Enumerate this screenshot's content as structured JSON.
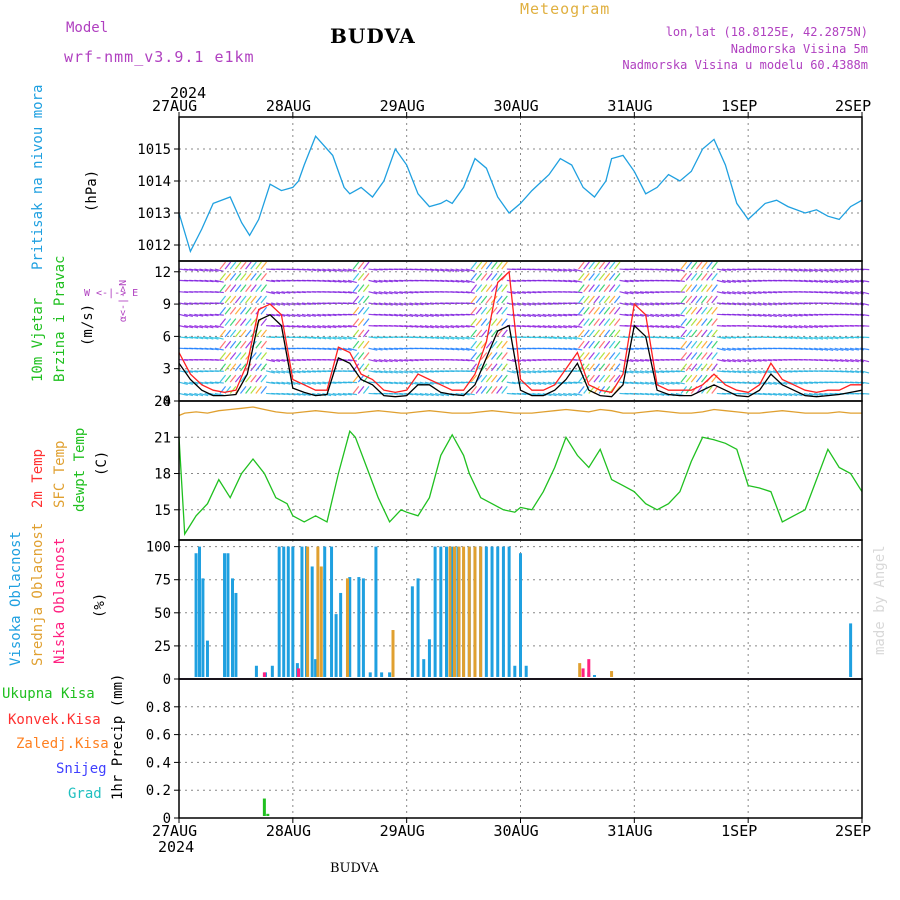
{
  "header": {
    "model_label": "Model",
    "model_name": "wrf-nmm_v3.9.1  e1km",
    "station": "BUDVA",
    "meteogram": "Meteogram",
    "lonlat": "lon,lat (18.8125E, 42.2875N)",
    "elevation": "Nadmorska Visina 5m",
    "model_elevation": "Nadmorska Visina u modelu 60.4388m",
    "footer_station": "BUDVA",
    "watermark": "made by Angel"
  },
  "axis": {
    "top_year": "2024",
    "bottom_year": "2024",
    "days": [
      "27AUG",
      "28AUG",
      "29AUG",
      "30AUG",
      "31AUG",
      "1SEP",
      "2SEP"
    ]
  },
  "panel_labels": {
    "pressure": {
      "title": "Pritisak na nivou mora",
      "unit": "(hPa)"
    },
    "wind": {
      "title1": "10m Vjetar",
      "title2": "Brzina i Pravac",
      "unit": "(m/s)",
      "compass_ns": "α<-|->N",
      "compass_we": "W <-|-> E"
    },
    "temp": {
      "t2m": "2m Temp",
      "sfc": "SFC Temp",
      "dew": "dewpt Temp",
      "unit": "(C)"
    },
    "cloud": {
      "high": "Visoka Oblacnost",
      "mid": "Srednja Oblacnost",
      "low": "Niska Oblacnost",
      "unit": "(%)"
    },
    "precip": {
      "total": "Ukupna Kisa",
      "conv": "Konvek.Kisa",
      "frozen": "Zaledj.Kisa",
      "snow": "Snijeg",
      "graupel": "Grad",
      "unit": "1hr Precip (mm)"
    }
  },
  "colors": {
    "pressure": "#1fa0e0",
    "wind_speed": "#000000",
    "wind_gust": "#ff2020",
    "temp_2m": "#20c020",
    "temp_sfc": "#e0a030",
    "cloud_high": "#1fa0e0",
    "cloud_mid": "#e0a030",
    "cloud_low": "#ff2080",
    "rain_total": "#20c020",
    "rain_conv": "#ff3030",
    "rain_frozen": "#ff8020",
    "snow": "#4040ff",
    "graupel": "#20c0c0",
    "header_purple": "#b040c0",
    "header_orange": "#e0b040"
  },
  "chart_data": [
    {
      "type": "line",
      "panel": "pressure",
      "x_days": [
        0,
        0.1,
        0.2,
        0.3,
        0.45,
        0.55,
        0.62,
        0.7,
        0.8,
        0.9,
        1.0,
        1.05,
        1.1,
        1.2,
        1.35,
        1.45,
        1.5,
        1.6,
        1.7,
        1.8,
        1.9,
        2.0,
        2.1,
        2.2,
        2.3,
        2.35,
        2.4,
        2.5,
        2.6,
        2.7,
        2.8,
        2.9,
        3.0,
        3.1,
        3.25,
        3.35,
        3.45,
        3.55,
        3.65,
        3.75,
        3.8,
        3.9,
        4.0,
        4.1,
        4.2,
        4.3,
        4.4,
        4.5,
        4.6,
        4.7,
        4.8,
        4.9,
        5.0,
        5.15,
        5.25,
        5.35,
        5.5,
        5.6,
        5.7,
        5.8,
        5.85,
        5.9,
        5.95,
        6.0
      ],
      "y": [
        1013.0,
        1011.8,
        1012.5,
        1013.3,
        1013.5,
        1012.7,
        1012.3,
        1012.8,
        1013.9,
        1013.7,
        1013.8,
        1014.0,
        1014.5,
        1015.4,
        1014.8,
        1013.8,
        1013.6,
        1013.8,
        1013.5,
        1014.0,
        1015.0,
        1014.5,
        1013.6,
        1013.2,
        1013.3,
        1013.4,
        1013.3,
        1013.8,
        1014.7,
        1014.4,
        1013.5,
        1013.0,
        1013.3,
        1013.7,
        1014.2,
        1014.7,
        1014.5,
        1013.8,
        1013.5,
        1014.0,
        1014.7,
        1014.8,
        1014.3,
        1013.6,
        1013.8,
        1014.2,
        1014.0,
        1014.3,
        1015.0,
        1015.3,
        1014.5,
        1013.3,
        1012.8,
        1013.3,
        1013.4,
        1013.2,
        1013.0,
        1013.1,
        1012.9,
        1012.8,
        1013.0,
        1013.2,
        1013.3,
        1013.4
      ],
      "ylabel": "(hPa)",
      "ylim": [
        1011.5,
        1016.0
      ],
      "yticks": [
        1012,
        1013,
        1014,
        1015
      ],
      "grid": true
    },
    {
      "type": "line",
      "panel": "wind",
      "x_days": [
        0,
        0.1,
        0.2,
        0.3,
        0.4,
        0.5,
        0.6,
        0.7,
        0.8,
        0.9,
        1.0,
        1.1,
        1.2,
        1.3,
        1.4,
        1.5,
        1.6,
        1.7,
        1.8,
        1.9,
        2.0,
        2.1,
        2.2,
        2.3,
        2.4,
        2.5,
        2.6,
        2.7,
        2.8,
        2.9,
        3.0,
        3.1,
        3.2,
        3.3,
        3.4,
        3.5,
        3.6,
        3.7,
        3.8,
        3.9,
        4.0,
        4.1,
        4.2,
        4.3,
        4.4,
        4.5,
        4.6,
        4.7,
        4.8,
        4.9,
        5.0,
        5.1,
        5.2,
        5.3,
        5.4,
        5.5,
        5.6,
        5.7,
        5.8,
        5.9,
        6.0
      ],
      "series": [
        {
          "name": "speed",
          "values": [
            3.5,
            2.0,
            1.0,
            0.5,
            0.5,
            0.6,
            2.5,
            7.5,
            8.0,
            7.0,
            1.2,
            0.8,
            0.5,
            0.6,
            4.0,
            3.5,
            2.0,
            1.5,
            0.5,
            0.4,
            0.5,
            1.5,
            1.5,
            0.8,
            0.6,
            0.5,
            1.5,
            4.0,
            6.5,
            7.0,
            1.0,
            0.5,
            0.5,
            1.0,
            2.0,
            3.5,
            1.0,
            0.5,
            0.4,
            1.5,
            7.0,
            6.0,
            1.0,
            0.6,
            0.5,
            0.5,
            1.0,
            1.5,
            1.0,
            0.5,
            0.4,
            1.0,
            2.5,
            1.5,
            1.0,
            0.5,
            0.4,
            0.5,
            0.6,
            0.8,
            1.0
          ]
        },
        {
          "name": "gust",
          "values": [
            4.5,
            2.5,
            1.5,
            1.0,
            0.8,
            1.0,
            3.5,
            8.5,
            9.0,
            8.0,
            2.0,
            1.5,
            1.0,
            1.0,
            5.0,
            4.5,
            2.5,
            2.0,
            1.0,
            0.8,
            1.0,
            2.5,
            2.0,
            1.5,
            1.0,
            1.0,
            2.5,
            5.5,
            11.0,
            12.0,
            2.0,
            1.0,
            1.0,
            1.5,
            3.0,
            4.5,
            1.5,
            1.0,
            0.8,
            2.5,
            9.0,
            8.0,
            1.5,
            1.0,
            1.0,
            1.0,
            1.5,
            2.5,
            1.5,
            1.0,
            0.8,
            1.5,
            3.5,
            2.0,
            1.5,
            1.0,
            0.8,
            1.0,
            1.0,
            1.5,
            1.5
          ]
        }
      ],
      "ylabel": "(m/s)",
      "ylim": [
        0,
        13
      ],
      "yticks": [
        0,
        3,
        6,
        9,
        12
      ],
      "grid": true
    },
    {
      "type": "line",
      "panel": "temperature",
      "x_days": [
        0,
        0.05,
        0.15,
        0.25,
        0.35,
        0.45,
        0.55,
        0.65,
        0.75,
        0.85,
        0.95,
        1.0,
        1.1,
        1.2,
        1.3,
        1.4,
        1.5,
        1.55,
        1.65,
        1.75,
        1.85,
        1.95,
        2.0,
        2.1,
        2.2,
        2.3,
        2.4,
        2.5,
        2.55,
        2.65,
        2.75,
        2.85,
        2.95,
        3.0,
        3.1,
        3.2,
        3.3,
        3.4,
        3.5,
        3.6,
        3.7,
        3.8,
        3.9,
        4.0,
        4.1,
        4.2,
        4.3,
        4.4,
        4.5,
        4.6,
        4.7,
        4.8,
        4.9,
        5.0,
        5.1,
        5.2,
        5.3,
        5.4,
        5.5,
        5.6,
        5.7,
        5.8,
        5.9,
        6.0
      ],
      "series": [
        {
          "name": "t2m",
          "values": [
            21.0,
            13.0,
            14.5,
            15.5,
            17.5,
            16.0,
            18.0,
            19.2,
            18.0,
            16.0,
            15.5,
            14.5,
            14.0,
            14.5,
            14.0,
            18.0,
            21.5,
            21.0,
            18.5,
            16.0,
            14.0,
            15.0,
            14.8,
            14.5,
            16.0,
            19.5,
            21.2,
            19.5,
            18.0,
            16.0,
            15.5,
            15.0,
            14.8,
            15.2,
            15.0,
            16.5,
            18.5,
            21.0,
            19.5,
            18.5,
            20.0,
            17.5,
            17.0,
            16.5,
            15.5,
            15.0,
            15.5,
            16.5,
            19.0,
            21.0,
            20.8,
            20.5,
            20.0,
            17.0,
            16.8,
            16.5,
            14.0,
            14.5,
            15.0,
            17.5,
            20.0,
            18.5,
            18.0,
            16.5
          ]
        },
        {
          "name": "sfc",
          "values": [
            22.8,
            23.0,
            23.1,
            23.0,
            23.2,
            23.3,
            23.4,
            23.5,
            23.3,
            23.1,
            23.0,
            23.0,
            23.1,
            23.2,
            23.1,
            23.0,
            23.0,
            23.0,
            23.1,
            23.2,
            23.1,
            23.0,
            23.0,
            23.1,
            23.2,
            23.1,
            23.0,
            23.0,
            23.0,
            23.1,
            23.2,
            23.1,
            23.0,
            23.0,
            23.0,
            23.1,
            23.2,
            23.3,
            23.2,
            23.1,
            23.3,
            23.2,
            23.0,
            23.0,
            23.1,
            23.2,
            23.1,
            23.0,
            23.0,
            23.1,
            23.3,
            23.2,
            23.1,
            23.0,
            23.0,
            23.1,
            23.2,
            23.1,
            23.0,
            23.0,
            23.0,
            23.1,
            23.0,
            23.0
          ]
        }
      ],
      "ylabel": "(C)",
      "ylim": [
        12.5,
        24
      ],
      "yticks": [
        15,
        18,
        21,
        24
      ],
      "grid": true
    },
    {
      "type": "bar",
      "panel": "cloud",
      "series": [
        {
          "name": "high",
          "x_days": [
            0.15,
            0.18,
            0.21,
            0.25,
            0.4,
            0.43,
            0.47,
            0.5,
            0.68,
            0.76,
            0.82,
            0.88,
            0.92,
            0.96,
            1.0,
            1.04,
            1.08,
            1.12,
            1.17,
            1.2,
            1.28,
            1.34,
            1.38,
            1.42,
            1.5,
            1.58,
            1.62,
            1.68,
            1.73,
            1.78,
            1.85,
            2.05,
            2.1,
            2.15,
            2.2,
            2.25,
            2.3,
            2.35,
            2.4,
            2.45,
            2.5,
            2.55,
            2.6,
            2.65,
            2.7,
            2.75,
            2.8,
            2.85,
            2.9,
            2.95,
            3.0,
            3.05,
            3.6,
            3.65,
            5.9
          ],
          "values": [
            95,
            100,
            76,
            29,
            95,
            95,
            76,
            65,
            10,
            5,
            10,
            100,
            100,
            100,
            100,
            12,
            100,
            100,
            85,
            15,
            100,
            100,
            49,
            65,
            77,
            77,
            76,
            5,
            100,
            5,
            5,
            70,
            76,
            15,
            30,
            100,
            100,
            100,
            100,
            100,
            90,
            100,
            100,
            100,
            100,
            100,
            100,
            100,
            100,
            10,
            95,
            10,
            5,
            3,
            42
          ]
        },
        {
          "name": "mid",
          "x_days": [
            1.13,
            1.22,
            1.25,
            1.48,
            1.88,
            2.38,
            2.42,
            2.46,
            2.5,
            2.55,
            2.6,
            2.65,
            3.52,
            3.8
          ],
          "values": [
            100,
            100,
            85,
            76,
            37,
            100,
            100,
            100,
            100,
            100,
            100,
            100,
            12,
            6
          ]
        },
        {
          "name": "low",
          "x_days": [
            0.75,
            1.05,
            3.55,
            3.6
          ],
          "values": [
            5,
            8,
            8,
            15
          ]
        }
      ],
      "ylabel": "(%)",
      "ylim": [
        0,
        105
      ],
      "yticks": [
        0,
        25,
        50,
        75,
        100
      ],
      "grid": true
    },
    {
      "type": "bar",
      "panel": "precipitation",
      "series": [
        {
          "name": "total",
          "x_days": [
            0.75,
            0.78
          ],
          "values": [
            0.14,
            0.03
          ]
        }
      ],
      "ylabel": "1hr Precip (mm)",
      "ylim": [
        0,
        1.0
      ],
      "yticks": [
        0,
        0.2,
        0.4,
        0.6,
        0.8
      ],
      "grid": true
    }
  ]
}
